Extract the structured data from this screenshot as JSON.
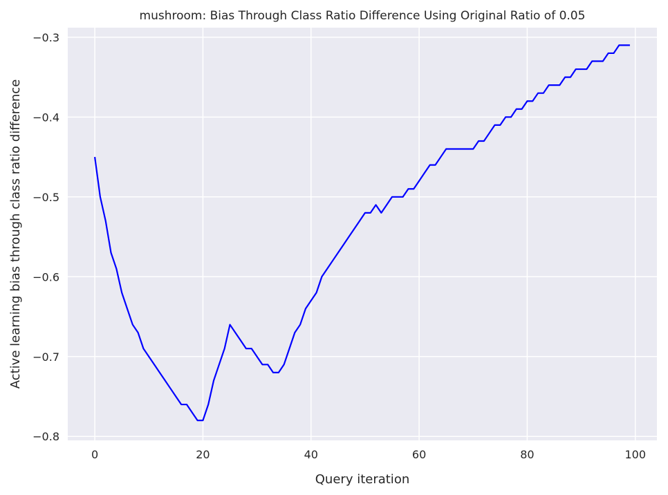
{
  "chart_data": {
    "type": "line",
    "title": "mushroom: Bias Through Class Ratio Difference Using Original Ratio of 0.05",
    "xlabel": "Query iteration",
    "ylabel": "Active learning bias through class ratio difference",
    "xlim": [
      -5,
      104
    ],
    "ylim": [
      -0.805,
      -0.288
    ],
    "xticks": [
      0,
      20,
      40,
      60,
      80,
      100
    ],
    "xtick_labels": [
      "0",
      "20",
      "40",
      "60",
      "80",
      "100"
    ],
    "yticks": [
      -0.3,
      -0.4,
      -0.5,
      -0.6,
      -0.7,
      -0.8
    ],
    "ytick_labels": [
      "−0.3",
      "−0.4",
      "−0.5",
      "−0.6",
      "−0.7",
      "−0.8"
    ],
    "grid": true,
    "colors": {
      "background": "#eaeaf2",
      "grid": "#ffffff",
      "line": "#0000ff"
    },
    "series": [
      {
        "x": [
          0,
          1,
          2,
          3,
          4,
          5,
          6,
          7,
          8,
          9,
          10,
          11,
          12,
          13,
          14,
          15,
          16,
          17,
          18,
          19,
          20,
          21,
          22,
          23,
          24,
          25,
          26,
          27,
          28,
          29,
          30,
          31,
          32,
          33,
          34,
          35,
          36,
          37,
          38,
          39,
          40,
          41,
          42,
          43,
          44,
          45,
          46,
          47,
          48,
          49,
          50,
          51,
          52,
          53,
          54,
          55,
          56,
          57,
          58,
          59,
          60,
          61,
          62,
          63,
          64,
          65,
          66,
          67,
          68,
          69,
          70,
          71,
          72,
          73,
          74,
          75,
          76,
          77,
          78,
          79,
          80,
          81,
          82,
          83,
          84,
          85,
          86,
          87,
          88,
          89,
          90,
          91,
          92,
          93,
          94,
          95,
          96,
          97,
          98,
          99
        ],
        "y": [
          -0.45,
          -0.5,
          -0.53,
          -0.57,
          -0.59,
          -0.62,
          -0.64,
          -0.66,
          -0.67,
          -0.69,
          -0.7,
          -0.71,
          -0.72,
          -0.73,
          -0.74,
          -0.75,
          -0.76,
          -0.76,
          -0.77,
          -0.78,
          -0.78,
          -0.76,
          -0.73,
          -0.71,
          -0.69,
          -0.66,
          -0.67,
          -0.68,
          -0.69,
          -0.69,
          -0.7,
          -0.71,
          -0.71,
          -0.72,
          -0.72,
          -0.71,
          -0.69,
          -0.67,
          -0.66,
          -0.64,
          -0.63,
          -0.62,
          -0.6,
          -0.59,
          -0.58,
          -0.57,
          -0.56,
          -0.55,
          -0.54,
          -0.53,
          -0.52,
          -0.52,
          -0.51,
          -0.52,
          -0.51,
          -0.5,
          -0.5,
          -0.5,
          -0.49,
          -0.49,
          -0.48,
          -0.47,
          -0.46,
          -0.46,
          -0.45,
          -0.44,
          -0.44,
          -0.44,
          -0.44,
          -0.44,
          -0.44,
          -0.43,
          -0.43,
          -0.42,
          -0.41,
          -0.41,
          -0.4,
          -0.4,
          -0.39,
          -0.39,
          -0.38,
          -0.38,
          -0.37,
          -0.37,
          -0.36,
          -0.36,
          -0.36,
          -0.35,
          -0.35,
          -0.34,
          -0.34,
          -0.34,
          -0.33,
          -0.33,
          -0.33,
          -0.32,
          -0.32,
          -0.31,
          -0.31,
          -0.31
        ]
      }
    ]
  }
}
